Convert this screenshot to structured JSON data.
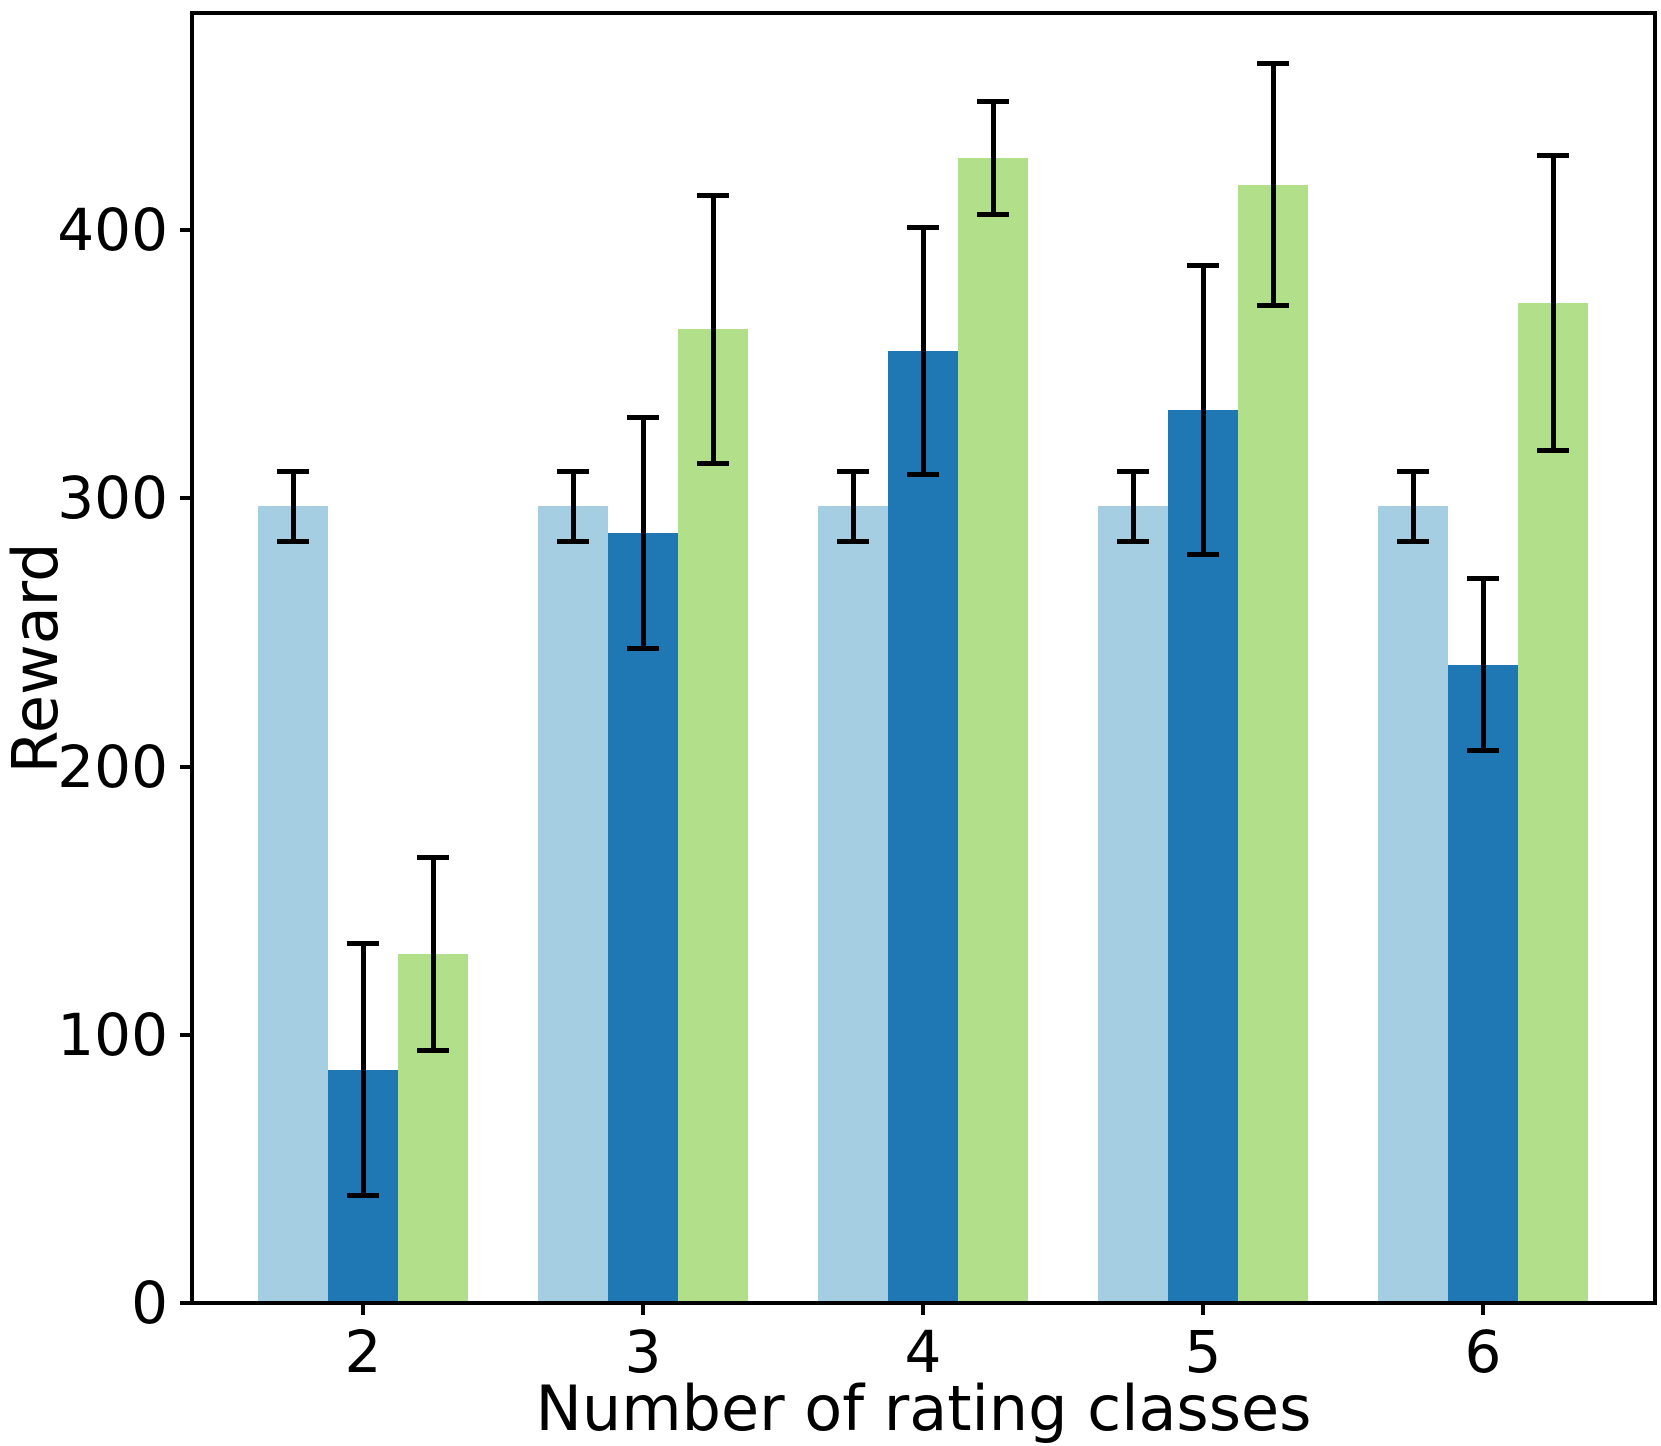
{
  "figure": {
    "background_color": "#ffffff",
    "text_color": "#000000"
  },
  "chart_data": {
    "type": "bar",
    "title": "",
    "xlabel": "Number of rating classes",
    "ylabel": "Reward",
    "categories": [
      "2",
      "3",
      "4",
      "5",
      "6"
    ],
    "series": [
      {
        "name": "light-blue-series",
        "color": "#a6cee3",
        "values": [
          297,
          297,
          297,
          297,
          297
        ],
        "errors": [
          13,
          13,
          13,
          13,
          13
        ]
      },
      {
        "name": "dark-blue-series",
        "color": "#1f78b4",
        "values": [
          87,
          287,
          355,
          333,
          238
        ],
        "errors": [
          47,
          43,
          46,
          54,
          32
        ]
      },
      {
        "name": "green-series",
        "color": "#b2df8a",
        "values": [
          130,
          363,
          427,
          417,
          373
        ],
        "errors": [
          36,
          50,
          21,
          45,
          55
        ]
      }
    ],
    "yticks": [
      0,
      100,
      200,
      300,
      400
    ],
    "ytick_labels": [
      "0",
      "100",
      "200",
      "300",
      "400"
    ],
    "ylim": [
      0,
      481
    ],
    "grid": false,
    "legend": "none",
    "errorbar_color": "#000000",
    "axis_color": "#000000"
  }
}
